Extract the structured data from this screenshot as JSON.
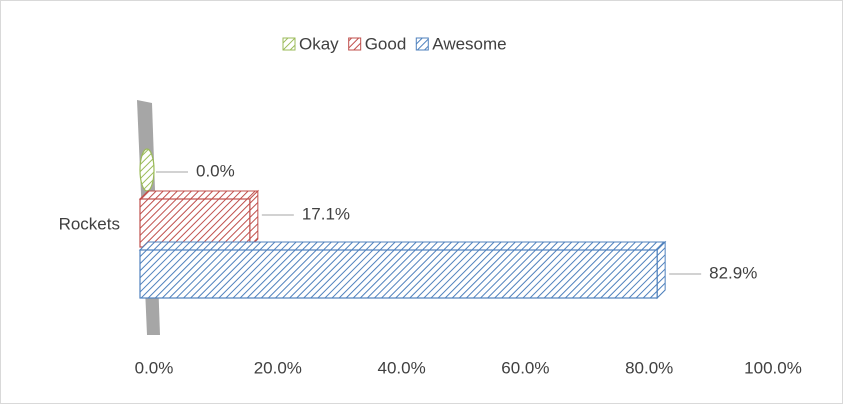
{
  "chart_data": {
    "type": "bar",
    "orientation": "horizontal",
    "categories": [
      "Rockets"
    ],
    "series": [
      {
        "name": "Okay",
        "color": "#9bbb59",
        "values": [
          0
        ],
        "value_labels": [
          "0.0%"
        ]
      },
      {
        "name": "Good",
        "color": "#c0504d",
        "values": [
          17.1
        ],
        "value_labels": [
          "17.1%"
        ]
      },
      {
        "name": "Awesome",
        "color": "#4f81bd",
        "values": [
          82.9
        ],
        "value_labels": [
          "82.9%"
        ]
      }
    ],
    "xlim": [
      0,
      100
    ],
    "xticks": [
      {
        "value": 0,
        "label": "0.0%"
      },
      {
        "value": 20,
        "label": "20.0%"
      },
      {
        "value": 40,
        "label": "40.0%"
      },
      {
        "value": 60,
        "label": "60.0%"
      },
      {
        "value": 80,
        "label": "80.0%"
      },
      {
        "value": 100,
        "label": "100.0%"
      }
    ],
    "legend": "top"
  }
}
